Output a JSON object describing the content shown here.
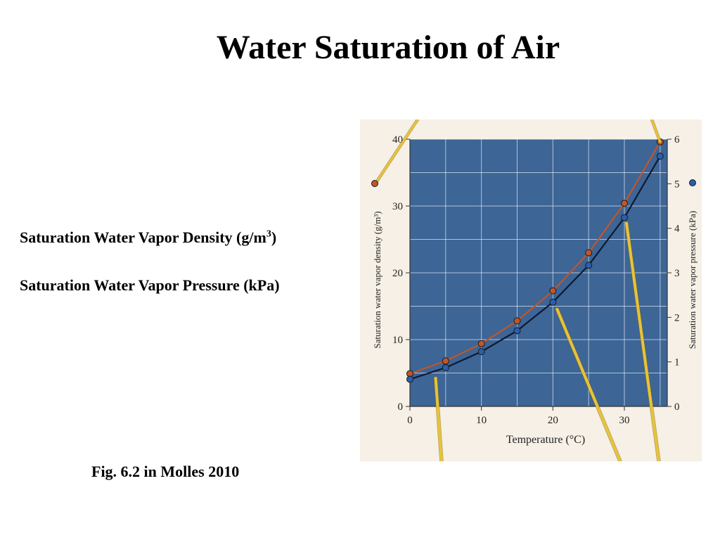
{
  "slide": {
    "title": "Water Saturation of Air",
    "density_label": "Saturation Water Vapor Density (g/m",
    "density_label_sup": "3",
    "density_label_close": ")",
    "pressure_label": "Saturation Water Vapor Pressure (kPa)",
    "caption": "Fig. 6.2 in Molles 2010"
  },
  "colors": {
    "plot_background": "#3d6596",
    "page_background": "#f6f0e6",
    "density_series": "#c0562a",
    "pressure_series": "#2a5fae",
    "pointer": "#e8c33a"
  },
  "chart_data": {
    "type": "line",
    "xlabel": "Temperature (°C)",
    "ylabel_left": "Saturation water vapor density (g/m³)",
    "ylabel_right": "Saturation water vapor pressure (kPa)",
    "xlim": [
      0,
      36
    ],
    "ylim_left": [
      0,
      40
    ],
    "ylim_right": [
      0,
      6
    ],
    "x_ticks": [
      0,
      10,
      20,
      30
    ],
    "y_left_ticks": [
      0,
      10,
      20,
      30,
      40
    ],
    "y_right_ticks": [
      0,
      1,
      2,
      3,
      4,
      5,
      6
    ],
    "grid": true,
    "x": [
      0,
      5,
      10,
      15,
      20,
      25,
      30,
      35
    ],
    "series": [
      {
        "name": "Saturation Water Vapor Density (g/m³)",
        "axis": "left",
        "color": "#c0562a",
        "values": [
          4.9,
          6.8,
          9.4,
          12.8,
          17.3,
          23.0,
          30.4,
          39.6
        ]
      },
      {
        "name": "Saturation Water Vapor Pressure (kPa)",
        "axis": "right",
        "color": "#2a5fae",
        "values": [
          0.61,
          0.87,
          1.23,
          1.7,
          2.34,
          3.17,
          4.24,
          5.62
        ]
      }
    ]
  }
}
